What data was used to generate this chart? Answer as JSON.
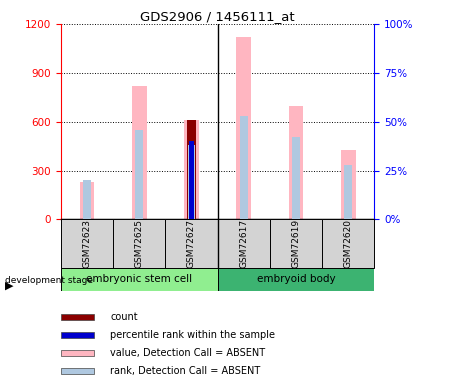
{
  "title": "GDS2906 / 1456111_at",
  "samples": [
    "GSM72623",
    "GSM72625",
    "GSM72627",
    "GSM72617",
    "GSM72619",
    "GSM72620"
  ],
  "value_absent": [
    230,
    820,
    610,
    1120,
    700,
    430
  ],
  "rank_absent_pct": [
    20,
    46,
    38,
    53,
    42,
    28
  ],
  "count_value": [
    0,
    0,
    610,
    0,
    0,
    0
  ],
  "percentile_rank_pct": [
    0,
    0,
    40,
    0,
    0,
    0
  ],
  "ylim_left": [
    0,
    1200
  ],
  "yticks_left": [
    0,
    300,
    600,
    900,
    1200
  ],
  "ylim_right": [
    0,
    100
  ],
  "yticks_right": [
    0,
    25,
    50,
    75,
    100
  ],
  "yticklabels_right": [
    "0%",
    "25%",
    "50%",
    "75%",
    "100%"
  ],
  "color_count": "#8B0000",
  "color_percentile": "#0000CD",
  "color_value_absent": "#FFB6C1",
  "color_rank_absent": "#AFC8E0",
  "group1_color": "#90EE90",
  "group2_color": "#3CB371",
  "group1_name": "embryonic stem cell",
  "group2_name": "embryoid body",
  "legend_items": [
    {
      "label": "count",
      "color": "#8B0000"
    },
    {
      "label": "percentile rank within the sample",
      "color": "#0000CD"
    },
    {
      "label": "value, Detection Call = ABSENT",
      "color": "#FFB6C1"
    },
    {
      "label": "rank, Detection Call = ABSENT",
      "color": "#AFC8E0"
    }
  ]
}
